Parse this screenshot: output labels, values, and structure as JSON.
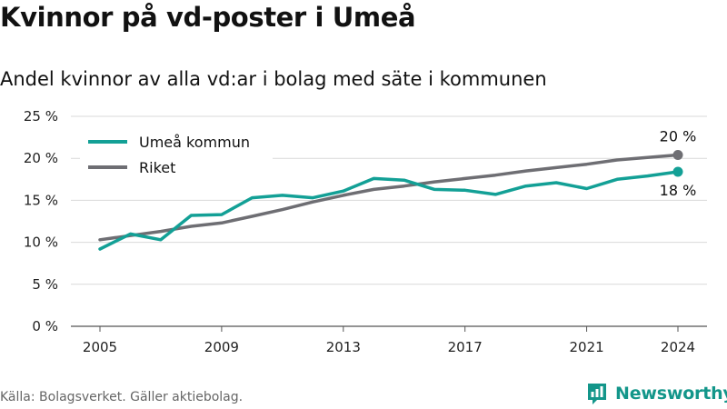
{
  "title": "Kvinnor på vd-poster i Umeå",
  "subtitle": "Andel kvinnor av alla vd:ar i bolag med säte i kommunen",
  "source": "Källa: Bolagsverket. Gäller aktiebolag.",
  "brand": {
    "name": "Newsworthy",
    "icon": "newsworthy-logo-icon",
    "color": "#13968a"
  },
  "colors": {
    "umea": "#13a096",
    "riket": "#6e6e73",
    "grid": "#d9d9d9"
  },
  "chart_data": {
    "type": "line",
    "x": [
      2005,
      2006,
      2007,
      2008,
      2009,
      2010,
      2011,
      2012,
      2013,
      2014,
      2015,
      2016,
      2017,
      2018,
      2019,
      2020,
      2021,
      2022,
      2023,
      2024
    ],
    "series": [
      {
        "name": "Umeå kommun",
        "color": "#13a096",
        "end_label": "18 %",
        "values": [
          9.2,
          11.0,
          10.3,
          13.2,
          13.3,
          15.3,
          15.6,
          15.3,
          16.1,
          17.6,
          17.4,
          16.3,
          16.2,
          15.7,
          16.7,
          17.1,
          16.4,
          17.5,
          17.9,
          18.4
        ]
      },
      {
        "name": "Riket",
        "color": "#6e6e73",
        "end_label": "20 %",
        "values": [
          10.3,
          10.8,
          11.3,
          11.9,
          12.3,
          13.1,
          13.9,
          14.8,
          15.6,
          16.3,
          16.7,
          17.2,
          17.6,
          18.0,
          18.5,
          18.9,
          19.3,
          19.8,
          20.1,
          20.4
        ]
      }
    ],
    "xticks": [
      2005,
      2009,
      2013,
      2017,
      2021,
      2024
    ],
    "yticks": [
      0,
      5,
      10,
      15,
      20,
      25
    ],
    "ytick_labels": [
      "0 %",
      "5 %",
      "10 %",
      "15 %",
      "20 %",
      "25 %"
    ],
    "ylim": [
      0,
      25
    ],
    "xlim": [
      2005,
      2024
    ],
    "xlabel": "",
    "ylabel": "",
    "grid": true,
    "legend_position": "top-left"
  }
}
